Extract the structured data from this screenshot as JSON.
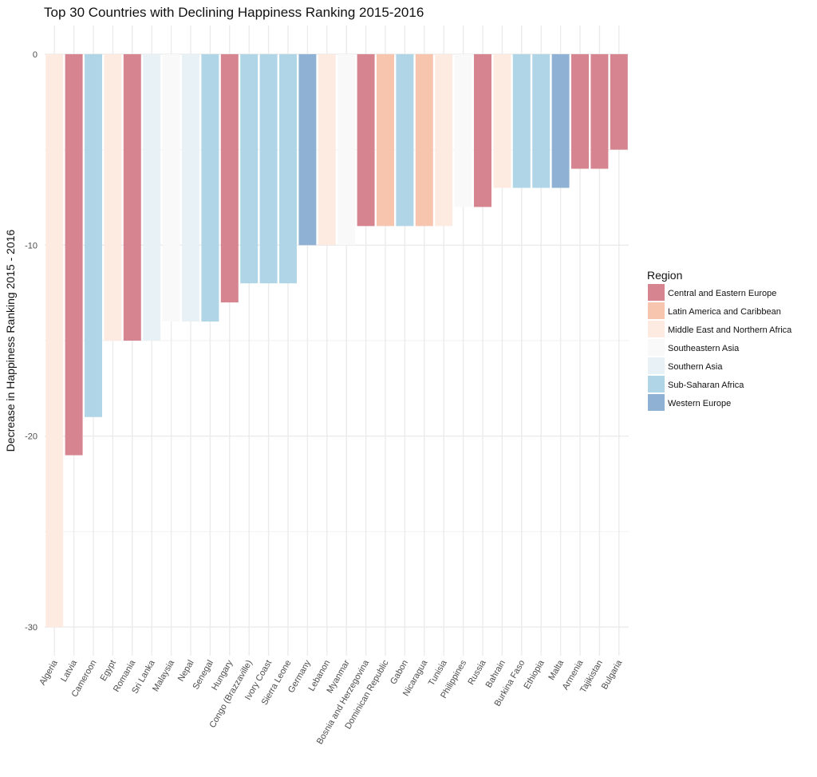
{
  "chart_data": {
    "type": "bar",
    "title": "Top 30 Countries with Declining Happiness Ranking 2015-2016",
    "xlabel": "",
    "ylabel": "Decrease in Happiness Ranking 2015 - 2016",
    "ylim": [
      -31.5,
      1.5
    ],
    "yticks": [
      0,
      -10,
      -20,
      -30
    ],
    "grid": true,
    "legend": {
      "title": "Region",
      "position": "right",
      "entries": [
        {
          "name": "Central and Eastern Europe",
          "color": "#d6848f"
        },
        {
          "name": "Latin America and Caribbean",
          "color": "#f7c4ae"
        },
        {
          "name": "Middle East and Northern Africa",
          "color": "#fdebe2"
        },
        {
          "name": "Southeastern Asia",
          "color": "#f9f9f9"
        },
        {
          "name": "Southern Asia",
          "color": "#e8f1f6"
        },
        {
          "name": "Sub-Saharan Africa",
          "color": "#b0d5e6"
        },
        {
          "name": "Western Europe",
          "color": "#8fb2d4"
        }
      ]
    },
    "categories": [
      "Algeria",
      "Latvia",
      "Cameroon",
      "Egypt",
      "Romania",
      "Sri Lanka",
      "Malaysia",
      "Nepal",
      "Senegal",
      "Hungary",
      "Congo (Brazzaville)",
      "Ivory Coast",
      "Sierra Leone",
      "Germany",
      "Lebanon",
      "Myanmar",
      "Bosnia and Herzegovina",
      "Dominican Republic",
      "Gabon",
      "Nicaragua",
      "Tunisia",
      "Philippines",
      "Russia",
      "Bahrain",
      "Burkina Faso",
      "Ethiopia",
      "Malta",
      "Armenia",
      "Tajikistan",
      "Bulgaria"
    ],
    "values": [
      -30,
      -21,
      -19,
      -15,
      -15,
      -15,
      -14,
      -14,
      -14,
      -13,
      -12,
      -12,
      -12,
      -10,
      -10,
      -10,
      -9,
      -9,
      -9,
      -9,
      -9,
      -8,
      -8,
      -7,
      -7,
      -7,
      -7,
      -6,
      -6,
      -5
    ],
    "regions": [
      "Middle East and Northern Africa",
      "Central and Eastern Europe",
      "Sub-Saharan Africa",
      "Middle East and Northern Africa",
      "Central and Eastern Europe",
      "Southern Asia",
      "Southeastern Asia",
      "Southern Asia",
      "Sub-Saharan Africa",
      "Central and Eastern Europe",
      "Sub-Saharan Africa",
      "Sub-Saharan Africa",
      "Sub-Saharan Africa",
      "Western Europe",
      "Middle East and Northern Africa",
      "Southeastern Asia",
      "Central and Eastern Europe",
      "Latin America and Caribbean",
      "Sub-Saharan Africa",
      "Latin America and Caribbean",
      "Middle East and Northern Africa",
      "Southeastern Asia",
      "Central and Eastern Europe",
      "Middle East and Northern Africa",
      "Sub-Saharan Africa",
      "Sub-Saharan Africa",
      "Western Europe",
      "Central and Eastern Europe",
      "Central and Eastern Europe",
      "Central and Eastern Europe"
    ]
  }
}
